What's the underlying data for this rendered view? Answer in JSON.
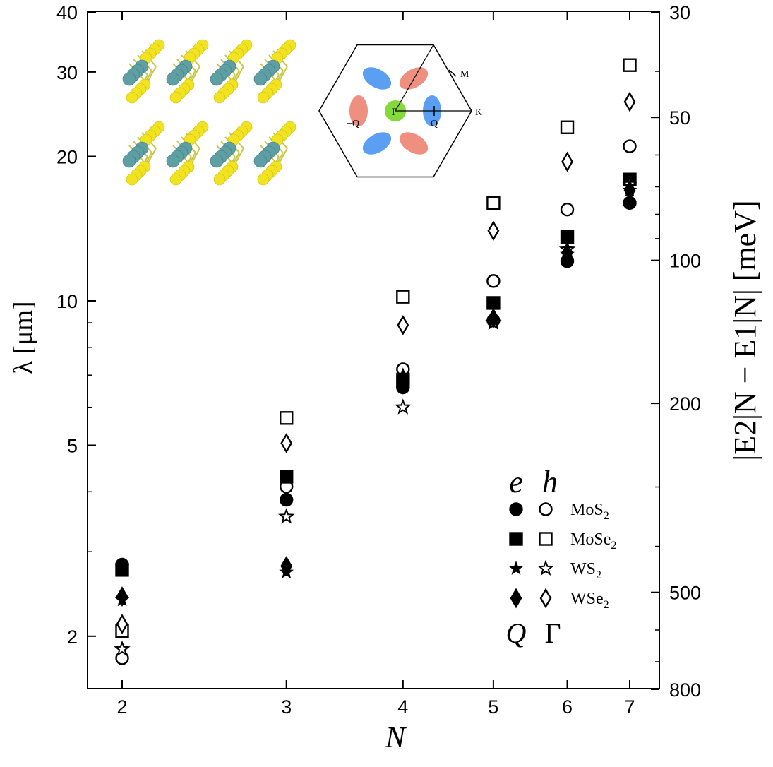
{
  "chart_data": {
    "type": "scatter",
    "title": "",
    "xlabel": "N",
    "ylabel_left": "λ [μm]",
    "ylabel_right": "|E2|N − E1|N| [meV]",
    "xscale": "log",
    "yscale": "log",
    "x": [
      2,
      3,
      4,
      5,
      6,
      7
    ],
    "xlim": [
      1.8,
      7.5
    ],
    "ylim_left": [
      1.55,
      40
    ],
    "ylim_right_meV": [
      800,
      30
    ],
    "x_ticks": [
      "2",
      "3",
      "4",
      "5",
      "6",
      "7"
    ],
    "y_left_ticks": [
      "2",
      "5",
      "10",
      "20",
      "30",
      "40"
    ],
    "y_right_ticks": [
      "30",
      "50",
      "100",
      "200",
      "500",
      "800"
    ],
    "series": [
      {
        "name": "MoS2 e (Q)",
        "material": "MoS2",
        "carrier": "e",
        "valley": "Q",
        "marker": "circle",
        "filled": true,
        "values": [
          2.82,
          3.85,
          6.6,
          9.1,
          12.1,
          16.0
        ]
      },
      {
        "name": "MoS2 h (Γ)",
        "material": "MoS2",
        "carrier": "h",
        "valley": "Γ",
        "marker": "circle",
        "filled": false,
        "values": [
          1.8,
          4.1,
          7.2,
          11.0,
          15.5,
          21.0
        ]
      },
      {
        "name": "MoSe2 e (Q)",
        "material": "MoSe2",
        "carrier": "e",
        "valley": "Q",
        "marker": "square",
        "filled": true,
        "values": [
          2.75,
          4.3,
          6.8,
          9.9,
          13.6,
          17.9
        ]
      },
      {
        "name": "MoSe2 h (Γ)",
        "material": "MoSe2",
        "carrier": "h",
        "valley": "Γ",
        "marker": "square",
        "filled": false,
        "values": [
          2.05,
          5.7,
          10.2,
          16.0,
          23.0,
          31.0
        ]
      },
      {
        "name": "WS2 e (Q)",
        "material": "WS2",
        "carrier": "e",
        "valley": "Q",
        "marker": "star",
        "filled": true,
        "values": [
          2.38,
          2.72,
          7.0,
          9.0,
          12.5,
          17.0
        ]
      },
      {
        "name": "WS2 h (Γ)",
        "material": "WS2",
        "carrier": "h",
        "valley": "Γ",
        "marker": "star",
        "filled": false,
        "values": [
          1.88,
          3.55,
          6.0,
          9.0,
          12.8,
          17.5
        ]
      },
      {
        "name": "WSe2 e (Q)",
        "material": "WSe2",
        "carrier": "e",
        "valley": "Q",
        "marker": "diamond",
        "filled": true,
        "values": [
          2.42,
          2.8,
          6.7,
          9.2,
          12.6,
          17.0
        ]
      },
      {
        "name": "WSe2 h (Γ)",
        "material": "WSe2",
        "carrier": "h",
        "valley": "Γ",
        "marker": "diamond",
        "filled": false,
        "values": [
          2.12,
          5.05,
          8.9,
          14.0,
          19.5,
          26.0
        ]
      }
    ],
    "legend": {
      "placement": "lower-right",
      "header_e": "e",
      "header_h": "h",
      "footer_q": "Q",
      "footer_gamma": "Γ",
      "rows": [
        {
          "base": "MoS",
          "sub": "2",
          "marker": "circle"
        },
        {
          "base": "MoSe",
          "sub": "2",
          "marker": "square"
        },
        {
          "base": "WS",
          "sub": "2",
          "marker": "star"
        },
        {
          "base": "WSe",
          "sub": "2",
          "marker": "diamond"
        }
      ]
    },
    "inset_bz": {
      "labels": {
        "gamma": "Γ",
        "m": "M",
        "k": "K",
        "q": "Q",
        "minus_q": "−Q"
      },
      "colors": {
        "electron_pocket": "#5b9ff2",
        "hole_pocket": "#ee8f7f",
        "gamma_pocket": "#86d93a"
      }
    },
    "structure_colors": {
      "chalcogen": "#f2e320",
      "metal": "#5e9fa3",
      "bond": "#c8c845"
    }
  }
}
